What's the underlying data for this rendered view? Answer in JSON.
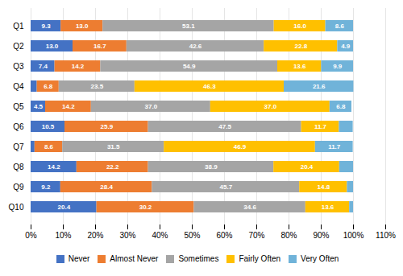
{
  "chart_data": {
    "type": "bar",
    "orientation": "horizontal",
    "stacked": true,
    "categories": [
      "Q1",
      "Q2",
      "Q3",
      "Q4",
      "Q5",
      "Q6",
      "Q7",
      "Q8",
      "Q9",
      "Q10"
    ],
    "series": [
      {
        "name": "Never",
        "color": "#4472C4",
        "values": [
          9.3,
          13.0,
          7.4,
          1.9,
          4.5,
          10.5,
          1.2,
          14.2,
          9.2,
          20.4
        ],
        "value_labels": [
          "9.3",
          "13.0",
          "7.4",
          null,
          "4.5",
          "10.5",
          null,
          "14.2",
          "9.2",
          "20.4"
        ]
      },
      {
        "name": "Almost Never",
        "color": "#ED7D31",
        "values": [
          13.0,
          16.7,
          14.2,
          6.8,
          14.2,
          25.9,
          8.6,
          22.2,
          28.4,
          30.2
        ],
        "value_labels": [
          "13.0",
          "16.7",
          "14.2",
          "6.8",
          "14.2",
          "25.9",
          "8.6",
          "22.2",
          "28.4",
          "30.2"
        ]
      },
      {
        "name": "Sometimes",
        "color": "#A5A5A5",
        "values": [
          53.1,
          42.6,
          54.9,
          23.5,
          37.0,
          47.5,
          31.5,
          38.9,
          45.7,
          34.6
        ],
        "value_labels": [
          "53.1",
          "42.6",
          "54.9",
          "23.5",
          "37.0",
          "47.5",
          "31.5",
          "38.9",
          "45.7",
          "34.6"
        ]
      },
      {
        "name": "Fairly Often",
        "color": "#FFC000",
        "values": [
          16.0,
          22.8,
          13.6,
          46.3,
          37.0,
          11.7,
          46.9,
          20.4,
          14.8,
          13.6
        ],
        "value_labels": [
          "16.0",
          "22.8",
          "13.6",
          "46.3",
          "37.0",
          "11.7",
          "46.9",
          "20.4",
          "14.8",
          "13.6"
        ]
      },
      {
        "name": "Very Often",
        "color": "#70B3D9",
        "values": [
          8.6,
          4.9,
          9.9,
          21.6,
          6.8,
          4.3,
          11.7,
          4.3,
          1.9,
          1.2
        ],
        "value_labels": [
          "8.6",
          "4.9",
          "9.9",
          "21.6",
          "6.8",
          null,
          "11.7",
          null,
          null,
          null
        ]
      }
    ],
    "xlim": [
      0,
      110
    ],
    "xticks": [
      {
        "value": 0,
        "label": "0%"
      },
      {
        "value": 10,
        "label": "10%"
      },
      {
        "value": 20,
        "label": "20%"
      },
      {
        "value": 30,
        "label": "30%"
      },
      {
        "value": 40,
        "label": "40%"
      },
      {
        "value": 50,
        "label": "50%"
      },
      {
        "value": 60,
        "label": "60%"
      },
      {
        "value": 70,
        "label": "70%"
      },
      {
        "value": 80,
        "label": "80%"
      },
      {
        "value": 90,
        "label": "90%"
      },
      {
        "value": 100,
        "label": "100%"
      },
      {
        "value": 110,
        "label": "110%"
      }
    ],
    "grid": true,
    "data_labels": true,
    "legend": "bottom"
  }
}
